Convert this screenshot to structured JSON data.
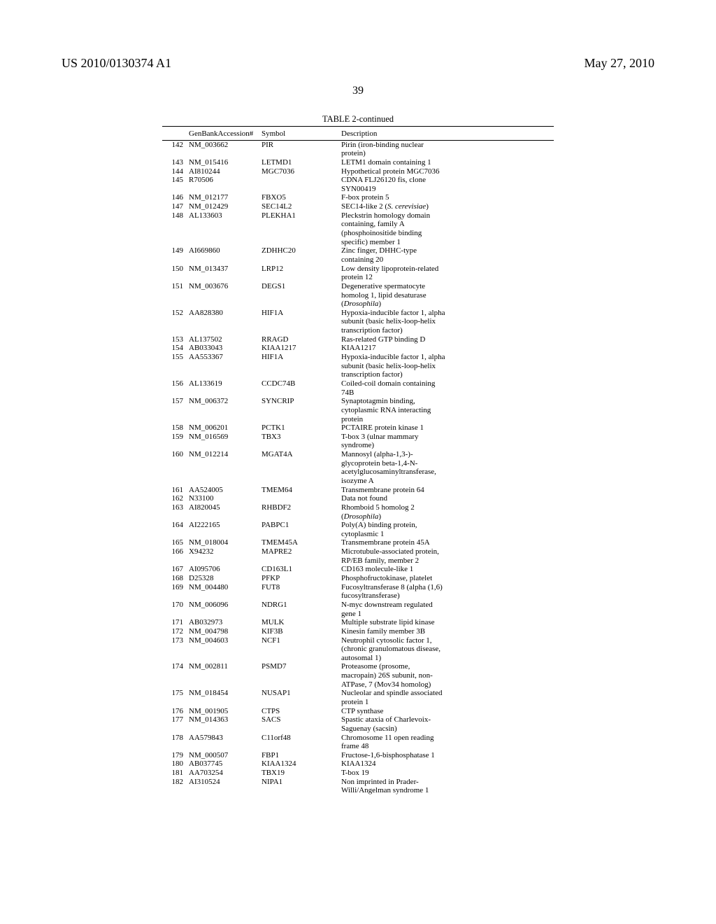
{
  "header": {
    "left": "US 2010/0130374 A1",
    "right": "May 27, 2010"
  },
  "pageNumber": "39",
  "table": {
    "title": "TABLE 2-continued",
    "columns": [
      "",
      "GenBankAccession#",
      "Symbol",
      "Description"
    ],
    "rows": [
      {
        "n": "142",
        "acc": "NM_003662",
        "sym": "PIR",
        "desc": [
          "Pirin (iron-binding nuclear",
          "protein)"
        ]
      },
      {
        "n": "143",
        "acc": "NM_015416",
        "sym": "LETMD1",
        "desc": [
          "LETM1 domain containing 1"
        ]
      },
      {
        "n": "144",
        "acc": "AI810244",
        "sym": "MGC7036",
        "desc": [
          "Hypothetical protein MGC7036"
        ]
      },
      {
        "n": "145",
        "acc": "R70506",
        "sym": "",
        "desc": [
          "CDNA FLJ26120 fis, clone",
          "SYN00419"
        ]
      },
      {
        "n": "146",
        "acc": "NM_012177",
        "sym": "FBXO5",
        "desc": [
          "F-box protein 5"
        ]
      },
      {
        "n": "147",
        "acc": "NM_012429",
        "sym": "SEC14L2",
        "desc": [
          "SEC14-like 2 (S. cerevisiae)"
        ]
      },
      {
        "n": "148",
        "acc": "AL133603",
        "sym": "PLEKHA1",
        "desc": [
          "Pleckstrin homology domain",
          "containing, family A",
          "(phosphoinositide binding",
          "specific) member 1"
        ]
      },
      {
        "n": "149",
        "acc": "AI669860",
        "sym": "ZDHHC20",
        "desc": [
          "Zinc finger, DHHC-type",
          "containing 20"
        ]
      },
      {
        "n": "150",
        "acc": "NM_013437",
        "sym": "LRP12",
        "desc": [
          "Low density lipoprotein-related",
          "protein 12"
        ]
      },
      {
        "n": "151",
        "acc": "NM_003676",
        "sym": "DEGS1",
        "desc": [
          "Degenerative spermatocyte",
          "homolog 1, lipid desaturase",
          "(Drosophila)"
        ]
      },
      {
        "n": "152",
        "acc": "AA828380",
        "sym": "HIF1A",
        "desc": [
          "Hypoxia-inducible factor 1, alpha",
          "subunit (basic helix-loop-helix",
          "transcription factor)"
        ]
      },
      {
        "n": "153",
        "acc": "AL137502",
        "sym": "RRAGD",
        "desc": [
          "Ras-related GTP binding D"
        ]
      },
      {
        "n": "154",
        "acc": "AB033043",
        "sym": "KIAA1217",
        "desc": [
          "KIAA1217"
        ]
      },
      {
        "n": "155",
        "acc": "AA553367",
        "sym": "HIF1A",
        "desc": [
          "Hypoxia-inducible factor 1, alpha",
          "subunit (basic helix-loop-helix",
          "transcription factor)"
        ]
      },
      {
        "n": "156",
        "acc": "AL133619",
        "sym": "CCDC74B",
        "desc": [
          "Coiled-coil domain containing",
          "74B"
        ]
      },
      {
        "n": "157",
        "acc": "NM_006372",
        "sym": "SYNCRIP",
        "desc": [
          "Synaptotagmin binding,",
          "cytoplasmic RNA interacting",
          "protein"
        ]
      },
      {
        "n": "158",
        "acc": "NM_006201",
        "sym": "PCTK1",
        "desc": [
          "PCTAIRE protein kinase 1"
        ]
      },
      {
        "n": "159",
        "acc": "NM_016569",
        "sym": "TBX3",
        "desc": [
          "T-box 3 (ulnar mammary",
          "syndrome)"
        ]
      },
      {
        "n": "160",
        "acc": "NM_012214",
        "sym": "MGAT4A",
        "desc": [
          "Mannosyl (alpha-1,3-)-",
          "glycoprotein beta-1,4-N-",
          "acetylglucosaminyltransferase,",
          "isozyme A"
        ]
      },
      {
        "n": "161",
        "acc": "AA524005",
        "sym": "TMEM64",
        "desc": [
          "Transmembrane protein 64"
        ]
      },
      {
        "n": "162",
        "acc": "N33100",
        "sym": "",
        "desc": [
          "Data not found"
        ]
      },
      {
        "n": "163",
        "acc": "AI820045",
        "sym": "RHBDF2",
        "desc": [
          "Rhomboid 5 homolog 2",
          "(Drosophila)"
        ]
      },
      {
        "n": "164",
        "acc": "AI222165",
        "sym": "PABPC1",
        "desc": [
          "Poly(A) binding protein,",
          "cytoplasmic 1"
        ]
      },
      {
        "n": "165",
        "acc": "NM_018004",
        "sym": "TMEM45A",
        "desc": [
          "Transmembrane protein 45A"
        ]
      },
      {
        "n": "166",
        "acc": "X94232",
        "sym": "MAPRE2",
        "desc": [
          "Microtubule-associated protein,",
          "RP/EB family, member 2"
        ]
      },
      {
        "n": "167",
        "acc": "AI095706",
        "sym": "CD163L1",
        "desc": [
          "CD163 molecule-like 1"
        ]
      },
      {
        "n": "168",
        "acc": "D25328",
        "sym": "PFKP",
        "desc": [
          "Phosphofructokinase, platelet"
        ]
      },
      {
        "n": "169",
        "acc": "NM_004480",
        "sym": "FUT8",
        "desc": [
          "Fucosyltransferase 8 (alpha (1,6)",
          "fucosyltransferase)"
        ]
      },
      {
        "n": "170",
        "acc": "NM_006096",
        "sym": "NDRG1",
        "desc": [
          "N-myc downstream regulated",
          "gene 1"
        ]
      },
      {
        "n": "171",
        "acc": "AB032973",
        "sym": "MULK",
        "desc": [
          "Multiple substrate lipid kinase"
        ]
      },
      {
        "n": "172",
        "acc": "NM_004798",
        "sym": "KIF3B",
        "desc": [
          "Kinesin family member 3B"
        ]
      },
      {
        "n": "173",
        "acc": "NM_004603",
        "sym": "NCF1",
        "desc": [
          "Neutrophil cytosolic factor 1,",
          "(chronic granulomatous disease,",
          "autosomal 1)"
        ]
      },
      {
        "n": "174",
        "acc": "NM_002811",
        "sym": "PSMD7",
        "desc": [
          "Proteasome (prosome,",
          "macropain) 26S subunit, non-",
          "ATPase, 7 (Mov34 homolog)"
        ]
      },
      {
        "n": "175",
        "acc": "NM_018454",
        "sym": "NUSAP1",
        "desc": [
          "Nucleolar and spindle associated",
          "protein 1"
        ]
      },
      {
        "n": "176",
        "acc": "NM_001905",
        "sym": "CTPS",
        "desc": [
          "CTP synthase"
        ]
      },
      {
        "n": "177",
        "acc": "NM_014363",
        "sym": "SACS",
        "desc": [
          "Spastic ataxia of Charlevoix-",
          "Saguenay (sacsin)"
        ]
      },
      {
        "n": "178",
        "acc": "AA579843",
        "sym": "C11orf48",
        "desc": [
          "Chromosome 11 open reading",
          "frame 48"
        ]
      },
      {
        "n": "179",
        "acc": "NM_000507",
        "sym": "FBP1",
        "desc": [
          "Fructose-1,6-bisphosphatase 1"
        ]
      },
      {
        "n": "180",
        "acc": "AB037745",
        "sym": "KIAA1324",
        "desc": [
          "KIAA1324"
        ]
      },
      {
        "n": "181",
        "acc": "AA703254",
        "sym": "TBX19",
        "desc": [
          "T-box 19"
        ]
      },
      {
        "n": "182",
        "acc": "AI310524",
        "sym": "NIPA1",
        "desc": [
          "Non imprinted in Prader-",
          "Willi/Angelman syndrome 1"
        ]
      }
    ]
  }
}
